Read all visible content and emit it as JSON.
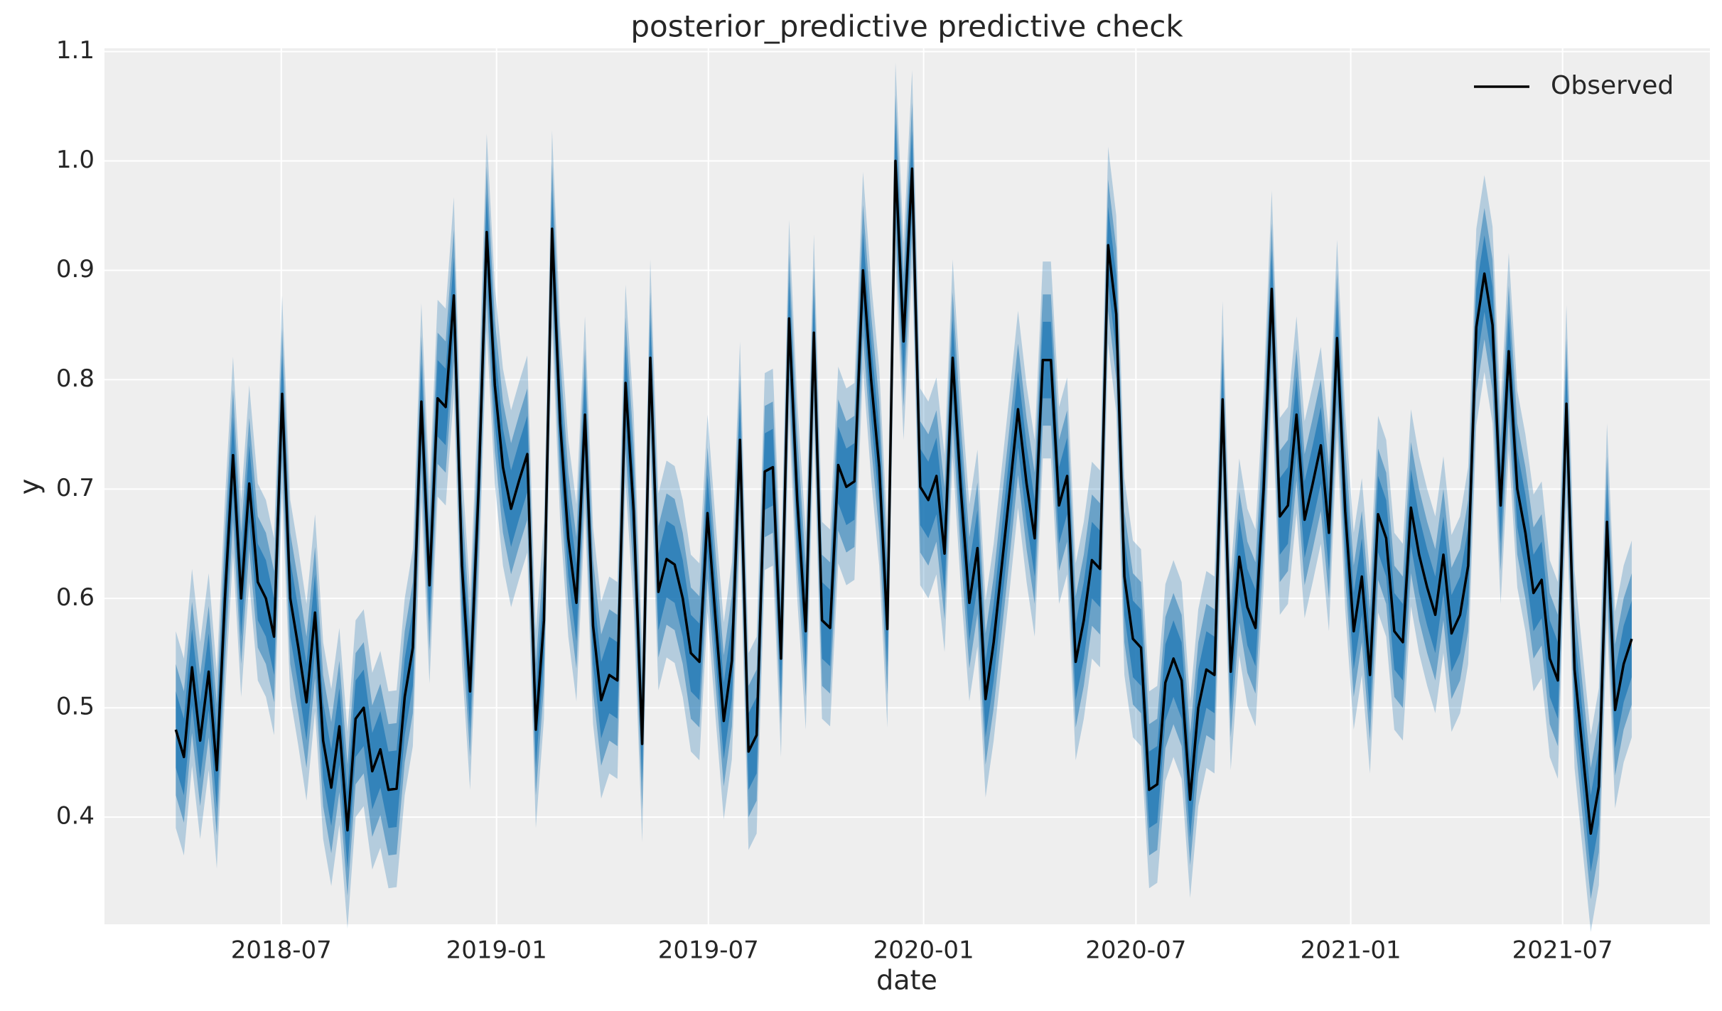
{
  "chart_data": {
    "type": "line",
    "title": "posterior_predictive predictive check",
    "x_label": "date",
    "y_label": "y",
    "legend": "upper right",
    "grid": true,
    "xlim": [
      2018.082,
      2021.841
    ],
    "ylim": [
      0.302,
      1.103
    ],
    "xticks": [
      {
        "value": 2018.496,
        "label": "2018-07"
      },
      {
        "value": 2019.0,
        "label": "2019-01"
      },
      {
        "value": 2019.496,
        "label": "2019-07"
      },
      {
        "value": 2020.0,
        "label": "2020-01"
      },
      {
        "value": 2020.497,
        "label": "2020-07"
      },
      {
        "value": 2021.0,
        "label": "2021-01"
      },
      {
        "value": 2021.496,
        "label": "2021-07"
      }
    ],
    "yticks": [
      0.4,
      0.5,
      0.6,
      0.7,
      0.8,
      0.9,
      {
        "value": 1,
        "label": "1.0"
      },
      1.1
    ],
    "band": {
      "color": "#1f77b4",
      "half_widths": [
        0.09,
        0.06,
        0.035
      ]
    },
    "x": [
      2018.249,
      2018.268,
      2018.287,
      2018.306,
      2018.326,
      2018.345,
      2018.364,
      2018.383,
      2018.402,
      2018.421,
      2018.441,
      2018.46,
      2018.479,
      2018.498,
      2018.517,
      2018.536,
      2018.555,
      2018.575,
      2018.594,
      2018.613,
      2018.632,
      2018.651,
      2018.67,
      2018.689,
      2018.709,
      2018.728,
      2018.747,
      2018.766,
      2018.785,
      2018.804,
      2018.824,
      2018.843,
      2018.862,
      2018.881,
      2018.9,
      2018.919,
      2018.938,
      2018.958,
      2018.977,
      2018.996,
      2019.015,
      2019.034,
      2019.053,
      2019.072,
      2019.092,
      2019.111,
      2019.13,
      2019.149,
      2019.168,
      2019.187,
      2019.207,
      2019.226,
      2019.245,
      2019.264,
      2019.283,
      2019.302,
      2019.321,
      2019.341,
      2019.36,
      2019.379,
      2019.398,
      2019.417,
      2019.436,
      2019.455,
      2019.475,
      2019.494,
      2019.513,
      2019.532,
      2019.551,
      2019.57,
      2019.59,
      2019.609,
      2019.628,
      2019.647,
      2019.666,
      2019.685,
      2019.704,
      2019.724,
      2019.743,
      2019.762,
      2019.781,
      2019.8,
      2019.819,
      2019.838,
      2019.858,
      2019.877,
      2019.896,
      2019.915,
      2019.934,
      2019.953,
      2019.973,
      2019.992,
      2020.011,
      2020.03,
      2020.049,
      2020.068,
      2020.087,
      2020.107,
      2020.126,
      2020.145,
      2020.164,
      2020.183,
      2020.202,
      2020.221,
      2020.241,
      2020.26,
      2020.279,
      2020.298,
      2020.317,
      2020.336,
      2020.356,
      2020.375,
      2020.394,
      2020.413,
      2020.432,
      2020.451,
      2020.47,
      2020.49,
      2020.509,
      2020.528,
      2020.547,
      2020.566,
      2020.585,
      2020.604,
      2020.624,
      2020.643,
      2020.662,
      2020.681,
      2020.7,
      2020.719,
      2020.739,
      2020.758,
      2020.777,
      2020.796,
      2020.815,
      2020.834,
      2020.853,
      2020.873,
      2020.892,
      2020.911,
      2020.93,
      2020.949,
      2020.968,
      2020.987,
      2021.007,
      2021.026,
      2021.045,
      2021.064,
      2021.083,
      2021.102,
      2021.122,
      2021.141,
      2021.16,
      2021.179,
      2021.198,
      2021.217,
      2021.236,
      2021.256,
      2021.275,
      2021.294,
      2021.313,
      2021.332,
      2021.351,
      2021.37,
      2021.39,
      2021.409,
      2021.428,
      2021.447,
      2021.466,
      2021.485,
      2021.505,
      2021.524,
      2021.543,
      2021.562,
      2021.581,
      2021.6,
      2021.619,
      2021.639,
      2021.658
    ],
    "series": [
      {
        "name": "Observed",
        "color": "#000000",
        "values": [
          0.48,
          0.455,
          0.537,
          0.47,
          0.533,
          0.443,
          0.6,
          0.731,
          0.6,
          0.705,
          0.615,
          0.6,
          0.565,
          0.787,
          0.6,
          0.555,
          0.505,
          0.587,
          0.47,
          0.427,
          0.483,
          0.388,
          0.49,
          0.5,
          0.442,
          0.462,
          0.425,
          0.426,
          0.51,
          0.555,
          0.78,
          0.612,
          0.783,
          0.775,
          0.877,
          0.63,
          0.515,
          0.7,
          0.935,
          0.795,
          0.72,
          0.682,
          0.708,
          0.732,
          0.48,
          0.58,
          0.938,
          0.76,
          0.655,
          0.596,
          0.768,
          0.575,
          0.507,
          0.53,
          0.525,
          0.797,
          0.68,
          0.467,
          0.82,
          0.606,
          0.636,
          0.631,
          0.6,
          0.55,
          0.542,
          0.678,
          0.58,
          0.488,
          0.543,
          0.745,
          0.46,
          0.475,
          0.716,
          0.72,
          0.545,
          0.856,
          0.69,
          0.57,
          0.843,
          0.58,
          0.573,
          0.722,
          0.702,
          0.707,
          0.9,
          0.8,
          0.72,
          0.572,
          1.0,
          0.835,
          0.993,
          0.702,
          0.69,
          0.712,
          0.641,
          0.82,
          0.7,
          0.596,
          0.646,
          0.508,
          0.56,
          0.63,
          0.7,
          0.773,
          0.705,
          0.655,
          0.818,
          0.818,
          0.685,
          0.712,
          0.542,
          0.58,
          0.635,
          0.627,
          0.923,
          0.86,
          0.62,
          0.563,
          0.555,
          0.425,
          0.43,
          0.523,
          0.545,
          0.525,
          0.416,
          0.5,
          0.535,
          0.53,
          0.782,
          0.533,
          0.638,
          0.592,
          0.573,
          0.7,
          0.883,
          0.675,
          0.685,
          0.768,
          0.672,
          0.705,
          0.74,
          0.66,
          0.838,
          0.68,
          0.57,
          0.62,
          0.53,
          0.677,
          0.655,
          0.57,
          0.56,
          0.683,
          0.64,
          0.61,
          0.585,
          0.64,
          0.568,
          0.585,
          0.63,
          0.848,
          0.897,
          0.85,
          0.685,
          0.826,
          0.7,
          0.66,
          0.605,
          0.617,
          0.545,
          0.525,
          0.778,
          0.535,
          0.46,
          0.385,
          0.428,
          0.67,
          0.498,
          0.54,
          0.563
        ]
      }
    ]
  }
}
